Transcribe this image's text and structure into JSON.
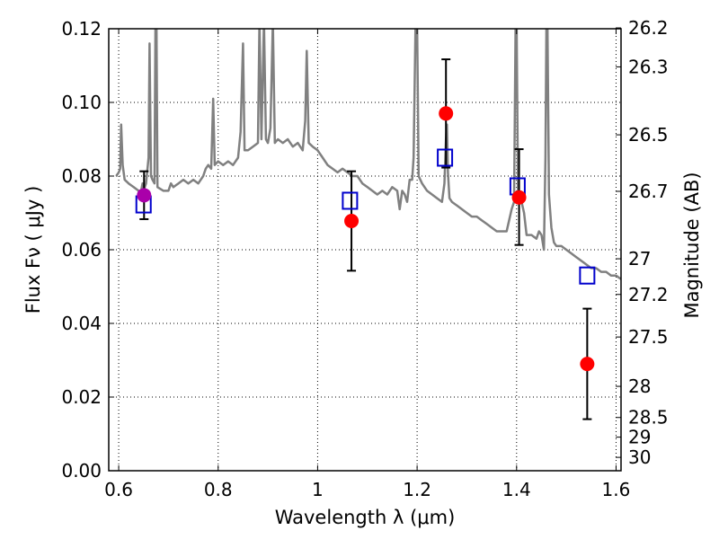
{
  "chart_data": {
    "type": "scatter",
    "xlabel": "Wavelength  λ (μm)",
    "ylabel": "Flux  Fν  ( μJy )",
    "y2label": "Magnitude (AB)",
    "xlim": [
      0.58,
      1.61
    ],
    "ylim": [
      0.0,
      0.12
    ],
    "grid": true,
    "x_ticks": [
      {
        "value": 0.6,
        "label": "0.6"
      },
      {
        "value": 0.8,
        "label": "0.8"
      },
      {
        "value": 1.0,
        "label": "1"
      },
      {
        "value": 1.2,
        "label": "1.2"
      },
      {
        "value": 1.4,
        "label": "1.4"
      },
      {
        "value": 1.6,
        "label": "1.6"
      }
    ],
    "y_ticks": [
      {
        "value": 0.0,
        "label": "0.00"
      },
      {
        "value": 0.02,
        "label": "0.02"
      },
      {
        "value": 0.04,
        "label": "0.04"
      },
      {
        "value": 0.06,
        "label": "0.06"
      },
      {
        "value": 0.08,
        "label": "0.08"
      },
      {
        "value": 0.1,
        "label": "0.10"
      },
      {
        "value": 0.12,
        "label": "0.12"
      }
    ],
    "y2_ticks": [
      {
        "value": 26.2,
        "label": "26.2"
      },
      {
        "value": 26.3,
        "label": "26.3"
      },
      {
        "value": 26.5,
        "label": "26.5"
      },
      {
        "value": 26.7,
        "label": "26.7"
      },
      {
        "value": 27.0,
        "label": "27"
      },
      {
        "value": 27.2,
        "label": "27.2"
      },
      {
        "value": 27.5,
        "label": "27.5"
      },
      {
        "value": 28.0,
        "label": "28"
      },
      {
        "value": 28.5,
        "label": "28.5"
      },
      {
        "value": 29.0,
        "label": "29"
      },
      {
        "value": 30.0,
        "label": "30"
      }
    ],
    "series": [
      {
        "kind": "line",
        "color": "#808080",
        "points": [
          [
            0.595,
            0.08
          ],
          [
            0.6,
            0.081
          ],
          [
            0.603,
            0.082
          ],
          [
            0.605,
            0.094
          ],
          [
            0.608,
            0.083
          ],
          [
            0.612,
            0.079
          ],
          [
            0.62,
            0.078
          ],
          [
            0.63,
            0.077
          ],
          [
            0.64,
            0.076
          ],
          [
            0.645,
            0.076
          ],
          [
            0.648,
            0.078
          ],
          [
            0.65,
            0.076
          ],
          [
            0.655,
            0.078
          ],
          [
            0.66,
            0.085
          ],
          [
            0.662,
            0.116
          ],
          [
            0.665,
            0.08
          ],
          [
            0.668,
            0.079
          ],
          [
            0.672,
            0.078
          ],
          [
            0.674,
            0.122
          ],
          [
            0.676,
            0.122
          ],
          [
            0.678,
            0.077
          ],
          [
            0.69,
            0.076
          ],
          [
            0.7,
            0.076
          ],
          [
            0.705,
            0.078
          ],
          [
            0.71,
            0.077
          ],
          [
            0.72,
            0.078
          ],
          [
            0.73,
            0.079
          ],
          [
            0.74,
            0.078
          ],
          [
            0.75,
            0.079
          ],
          [
            0.76,
            0.078
          ],
          [
            0.77,
            0.08
          ],
          [
            0.775,
            0.082
          ],
          [
            0.78,
            0.083
          ],
          [
            0.786,
            0.082
          ],
          [
            0.79,
            0.101
          ],
          [
            0.793,
            0.083
          ],
          [
            0.8,
            0.084
          ],
          [
            0.81,
            0.083
          ],
          [
            0.82,
            0.084
          ],
          [
            0.83,
            0.083
          ],
          [
            0.84,
            0.085
          ],
          [
            0.845,
            0.092
          ],
          [
            0.85,
            0.116
          ],
          [
            0.853,
            0.087
          ],
          [
            0.86,
            0.087
          ],
          [
            0.87,
            0.088
          ],
          [
            0.88,
            0.089
          ],
          [
            0.883,
            0.122
          ],
          [
            0.887,
            0.09
          ],
          [
            0.892,
            0.122
          ],
          [
            0.896,
            0.09
          ],
          [
            0.9,
            0.089
          ],
          [
            0.905,
            0.093
          ],
          [
            0.91,
            0.122
          ],
          [
            0.914,
            0.089
          ],
          [
            0.92,
            0.09
          ],
          [
            0.93,
            0.089
          ],
          [
            0.94,
            0.09
          ],
          [
            0.95,
            0.088
          ],
          [
            0.96,
            0.089
          ],
          [
            0.97,
            0.087
          ],
          [
            0.975,
            0.095
          ],
          [
            0.978,
            0.114
          ],
          [
            0.982,
            0.089
          ],
          [
            0.99,
            0.088
          ],
          [
            1.0,
            0.087
          ],
          [
            1.01,
            0.085
          ],
          [
            1.02,
            0.083
          ],
          [
            1.03,
            0.082
          ],
          [
            1.04,
            0.081
          ],
          [
            1.05,
            0.082
          ],
          [
            1.06,
            0.081
          ],
          [
            1.07,
            0.08
          ],
          [
            1.08,
            0.08
          ],
          [
            1.09,
            0.078
          ],
          [
            1.1,
            0.077
          ],
          [
            1.11,
            0.076
          ],
          [
            1.12,
            0.075
          ],
          [
            1.13,
            0.076
          ],
          [
            1.14,
            0.075
          ],
          [
            1.15,
            0.077
          ],
          [
            1.16,
            0.076
          ],
          [
            1.165,
            0.071
          ],
          [
            1.17,
            0.076
          ],
          [
            1.175,
            0.075
          ],
          [
            1.18,
            0.073
          ],
          [
            1.185,
            0.079
          ],
          [
            1.19,
            0.079
          ],
          [
            1.193,
            0.085
          ],
          [
            1.197,
            0.122
          ],
          [
            1.2,
            0.122
          ],
          [
            1.203,
            0.08
          ],
          [
            1.21,
            0.078
          ],
          [
            1.22,
            0.076
          ],
          [
            1.23,
            0.075
          ],
          [
            1.24,
            0.074
          ],
          [
            1.25,
            0.073
          ],
          [
            1.255,
            0.078
          ],
          [
            1.258,
            0.09
          ],
          [
            1.26,
            0.094
          ],
          [
            1.262,
            0.081
          ],
          [
            1.265,
            0.074
          ],
          [
            1.27,
            0.073
          ],
          [
            1.28,
            0.072
          ],
          [
            1.29,
            0.071
          ],
          [
            1.3,
            0.07
          ],
          [
            1.31,
            0.069
          ],
          [
            1.32,
            0.069
          ],
          [
            1.33,
            0.068
          ],
          [
            1.34,
            0.067
          ],
          [
            1.35,
            0.066
          ],
          [
            1.36,
            0.065
          ],
          [
            1.37,
            0.065
          ],
          [
            1.38,
            0.065
          ],
          [
            1.385,
            0.068
          ],
          [
            1.39,
            0.071
          ],
          [
            1.395,
            0.073
          ],
          [
            1.398,
            0.122
          ],
          [
            1.4,
            0.122
          ],
          [
            1.403,
            0.074
          ],
          [
            1.41,
            0.073
          ],
          [
            1.415,
            0.07
          ],
          [
            1.42,
            0.064
          ],
          [
            1.43,
            0.064
          ],
          [
            1.44,
            0.063
          ],
          [
            1.445,
            0.065
          ],
          [
            1.45,
            0.064
          ],
          [
            1.455,
            0.06
          ],
          [
            1.458,
            0.085
          ],
          [
            1.46,
            0.122
          ],
          [
            1.462,
            0.122
          ],
          [
            1.465,
            0.075
          ],
          [
            1.47,
            0.066
          ],
          [
            1.475,
            0.062
          ],
          [
            1.48,
            0.061
          ],
          [
            1.49,
            0.061
          ],
          [
            1.5,
            0.06
          ],
          [
            1.51,
            0.059
          ],
          [
            1.52,
            0.058
          ],
          [
            1.53,
            0.057
          ],
          [
            1.54,
            0.056
          ],
          [
            1.55,
            0.055
          ],
          [
            1.56,
            0.055
          ],
          [
            1.57,
            0.054
          ],
          [
            1.58,
            0.054
          ],
          [
            1.59,
            0.053
          ],
          [
            1.6,
            0.053
          ],
          [
            1.61,
            0.052
          ]
        ]
      },
      {
        "kind": "open-square",
        "color": "#0000cc",
        "points": [
          [
            0.65,
            0.0723
          ],
          [
            1.065,
            0.0733
          ],
          [
            1.256,
            0.085
          ],
          [
            1.402,
            0.0772
          ],
          [
            1.542,
            0.053
          ]
        ]
      },
      {
        "kind": "filled-circle",
        "color": "#ff0000",
        "points": [
          [
            1.068,
            0.0678
          ],
          [
            1.258,
            0.097
          ],
          [
            1.405,
            0.0742
          ],
          [
            1.542,
            0.029
          ]
        ]
      },
      {
        "kind": "filled-circle",
        "color": "#aa00aa",
        "points": [
          [
            0.651,
            0.0748
          ]
        ]
      }
    ],
    "errorbars": [
      {
        "x": 0.651,
        "low": 0.0683,
        "high": 0.0813
      },
      {
        "x": 1.068,
        "low": 0.0543,
        "high": 0.0813
      },
      {
        "x": 1.258,
        "low": 0.0823,
        "high": 0.1117
      },
      {
        "x": 1.405,
        "low": 0.0613,
        "high": 0.0873
      },
      {
        "x": 1.542,
        "low": 0.014,
        "high": 0.044
      }
    ]
  }
}
